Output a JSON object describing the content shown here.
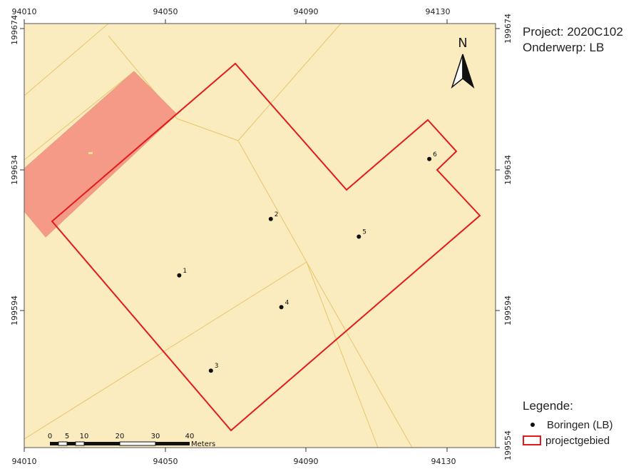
{
  "title_block": {
    "project": "Project: 2020C102",
    "onderwerp": "Onderwerp: LB"
  },
  "north_arrow": {
    "label": "N",
    "icon": "north-arrow-icon"
  },
  "axes": {
    "x_ticks_top": [
      "94010",
      "94050",
      "94090",
      "94130"
    ],
    "x_ticks_bottom": [
      "94010",
      "94050",
      "94090",
      "94130"
    ],
    "y_ticks_left": [
      "199674",
      "199634",
      "199594"
    ],
    "y_ticks_right": [
      "199674",
      "199634",
      "199594",
      "199554"
    ]
  },
  "scale_bar": {
    "labels": [
      "0",
      "5",
      "10",
      "20",
      "30",
      "40"
    ],
    "unit": "Meters"
  },
  "boreholes": [
    {
      "label": "1",
      "x": 94054,
      "y": 199604
    },
    {
      "label": "2",
      "x": 94080,
      "y": 199620
    },
    {
      "label": "3",
      "x": 94063,
      "y": 199577
    },
    {
      "label": "4",
      "x": 94083,
      "y": 199595
    },
    {
      "label": "5",
      "x": 94105,
      "y": 199615
    },
    {
      "label": "6",
      "x": 94125,
      "y": 199637
    }
  ],
  "legend": {
    "title": "Legende:",
    "items": [
      {
        "label": "Boringen (LB)",
        "symbol": "point"
      },
      {
        "label": "projectgebied",
        "symbol": "polygon-outline"
      }
    ]
  },
  "colors": {
    "background": "#fbecc0",
    "parcel_lines": "#e8c56a",
    "building": "#f59a86",
    "project_outline": "#e31a1c",
    "points": "#111111"
  }
}
